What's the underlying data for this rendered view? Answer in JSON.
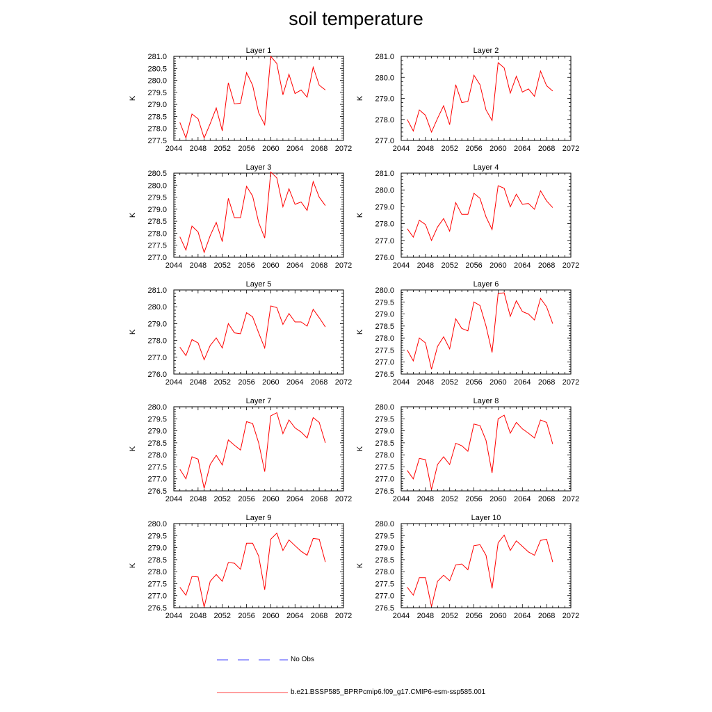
{
  "title": "soil temperature",
  "chart_data": [
    {
      "type": "line",
      "title": "Layer 1",
      "ylabel": "K",
      "xlim": [
        2044,
        2072
      ],
      "ylim": [
        277.5,
        281.0
      ],
      "xticks": [
        "2044",
        "2048",
        "2052",
        "2056",
        "2060",
        "2064",
        "2068",
        "2072"
      ],
      "yticks": [
        "277.5",
        "278.0",
        "278.5",
        "279.0",
        "279.5",
        "280.0",
        "280.5",
        "281.0"
      ],
      "x": [
        2045,
        2046,
        2047,
        2048,
        2049,
        2050,
        2051,
        2052,
        2053,
        2054,
        2055,
        2056,
        2057,
        2058,
        2059,
        2060,
        2061,
        2062,
        2063,
        2064,
        2065,
        2066,
        2067,
        2068,
        2069
      ],
      "series": [
        {
          "values": [
            278.25,
            277.6,
            278.6,
            278.4,
            277.6,
            278.2,
            278.85,
            277.9,
            279.9,
            279.02,
            279.05,
            280.32,
            279.8,
            278.65,
            278.15,
            281.0,
            280.7,
            279.4,
            280.25,
            279.45,
            279.6,
            279.3,
            280.55,
            279.8,
            279.6
          ],
          "color": "#ff0000"
        }
      ]
    },
    {
      "type": "line",
      "title": "Layer 2",
      "ylabel": "K",
      "xlim": [
        2044,
        2072
      ],
      "ylim": [
        277.0,
        281.0
      ],
      "xticks": [
        "2044",
        "2048",
        "2052",
        "2056",
        "2060",
        "2064",
        "2068",
        "2072"
      ],
      "yticks": [
        "277.0",
        "278.0",
        "279.0",
        "280.0",
        "281.0"
      ],
      "x": [
        2045,
        2046,
        2047,
        2048,
        2049,
        2050,
        2051,
        2052,
        2053,
        2054,
        2055,
        2056,
        2057,
        2058,
        2059,
        2060,
        2061,
        2062,
        2063,
        2064,
        2065,
        2066,
        2067,
        2068,
        2069
      ],
      "series": [
        {
          "values": [
            278.0,
            277.45,
            278.45,
            278.2,
            277.4,
            278.05,
            278.65,
            277.75,
            279.65,
            278.8,
            278.85,
            280.1,
            279.65,
            278.45,
            277.95,
            280.7,
            280.45,
            279.25,
            280.05,
            279.3,
            279.45,
            279.1,
            280.3,
            279.6,
            279.35
          ],
          "color": "#ff0000"
        }
      ]
    },
    {
      "type": "line",
      "title": "Layer 3",
      "ylabel": "K",
      "xlim": [
        2044,
        2072
      ],
      "ylim": [
        277.0,
        280.5
      ],
      "xticks": [
        "2044",
        "2048",
        "2052",
        "2056",
        "2060",
        "2064",
        "2068",
        "2072"
      ],
      "yticks": [
        "277.0",
        "277.5",
        "278.0",
        "278.5",
        "279.0",
        "279.5",
        "280.0",
        "280.5"
      ],
      "x": [
        2045,
        2046,
        2047,
        2048,
        2049,
        2050,
        2051,
        2052,
        2053,
        2054,
        2055,
        2056,
        2057,
        2058,
        2059,
        2060,
        2061,
        2062,
        2063,
        2064,
        2065,
        2066,
        2067,
        2068,
        2069
      ],
      "series": [
        {
          "values": [
            277.85,
            277.3,
            278.3,
            278.05,
            277.2,
            277.9,
            278.45,
            277.65,
            279.45,
            278.65,
            278.65,
            279.95,
            279.55,
            278.45,
            277.8,
            280.55,
            280.3,
            279.1,
            279.85,
            279.2,
            279.3,
            278.95,
            280.15,
            279.5,
            279.15
          ],
          "color": "#ff0000"
        }
      ]
    },
    {
      "type": "line",
      "title": "Layer 4",
      "ylabel": "K",
      "xlim": [
        2044,
        2072
      ],
      "ylim": [
        276.0,
        281.0
      ],
      "xticks": [
        "2044",
        "2048",
        "2052",
        "2056",
        "2060",
        "2064",
        "2068",
        "2072"
      ],
      "yticks": [
        "276.0",
        "277.0",
        "278.0",
        "279.0",
        "280.0",
        "281.0"
      ],
      "x": [
        2045,
        2046,
        2047,
        2048,
        2049,
        2050,
        2051,
        2052,
        2053,
        2054,
        2055,
        2056,
        2057,
        2058,
        2059,
        2060,
        2061,
        2062,
        2063,
        2064,
        2065,
        2066,
        2067,
        2068,
        2069
      ],
      "series": [
        {
          "values": [
            277.7,
            277.2,
            278.2,
            277.95,
            277.0,
            277.8,
            278.3,
            277.55,
            279.25,
            278.55,
            278.55,
            279.8,
            279.5,
            278.4,
            277.65,
            280.25,
            280.1,
            279.0,
            279.75,
            279.15,
            279.2,
            278.85,
            279.95,
            279.35,
            278.95
          ],
          "color": "#ff0000"
        }
      ]
    },
    {
      "type": "line",
      "title": "Layer 5",
      "ylabel": "K",
      "xlim": [
        2044,
        2072
      ],
      "ylim": [
        276.0,
        281.0
      ],
      "xticks": [
        "2044",
        "2048",
        "2052",
        "2056",
        "2060",
        "2064",
        "2068",
        "2072"
      ],
      "yticks": [
        "276.0",
        "277.0",
        "278.0",
        "279.0",
        "280.0",
        "281.0"
      ],
      "x": [
        2045,
        2046,
        2047,
        2048,
        2049,
        2050,
        2051,
        2052,
        2053,
        2054,
        2055,
        2056,
        2057,
        2058,
        2059,
        2060,
        2061,
        2062,
        2063,
        2064,
        2065,
        2066,
        2067,
        2068,
        2069
      ],
      "series": [
        {
          "values": [
            277.6,
            277.1,
            278.05,
            277.85,
            276.85,
            277.7,
            278.15,
            277.55,
            279.0,
            278.45,
            278.4,
            279.65,
            279.4,
            278.45,
            277.55,
            280.05,
            279.95,
            278.95,
            279.6,
            279.1,
            279.1,
            278.85,
            279.85,
            279.35,
            278.8
          ],
          "color": "#ff0000"
        }
      ]
    },
    {
      "type": "line",
      "title": "Layer 6",
      "ylabel": "K",
      "xlim": [
        2044,
        2072
      ],
      "ylim": [
        276.5,
        280.0
      ],
      "xticks": [
        "2044",
        "2048",
        "2052",
        "2056",
        "2060",
        "2064",
        "2068",
        "2072"
      ],
      "yticks": [
        "276.5",
        "277.0",
        "277.5",
        "278.0",
        "278.5",
        "279.0",
        "279.5",
        "280.0"
      ],
      "x": [
        2045,
        2046,
        2047,
        2048,
        2049,
        2050,
        2051,
        2052,
        2053,
        2054,
        2055,
        2056,
        2057,
        2058,
        2059,
        2060,
        2061,
        2062,
        2063,
        2064,
        2065,
        2066,
        2067,
        2068,
        2069
      ],
      "series": [
        {
          "values": [
            277.5,
            277.05,
            278.0,
            277.8,
            276.7,
            277.65,
            278.05,
            277.55,
            278.8,
            278.4,
            278.3,
            279.5,
            279.35,
            278.5,
            277.4,
            279.85,
            279.88,
            278.9,
            279.55,
            279.1,
            279.0,
            278.75,
            279.65,
            279.3,
            278.6
          ],
          "color": "#ff0000"
        }
      ]
    },
    {
      "type": "line",
      "title": "Layer 7",
      "ylabel": "K",
      "xlim": [
        2044,
        2072
      ],
      "ylim": [
        276.5,
        280.0
      ],
      "xticks": [
        "2044",
        "2048",
        "2052",
        "2056",
        "2060",
        "2064",
        "2068",
        "2072"
      ],
      "yticks": [
        "276.5",
        "277.0",
        "277.5",
        "278.0",
        "278.5",
        "279.0",
        "279.5",
        "280.0"
      ],
      "x": [
        2045,
        2046,
        2047,
        2048,
        2049,
        2050,
        2051,
        2052,
        2053,
        2054,
        2055,
        2056,
        2057,
        2058,
        2059,
        2060,
        2061,
        2062,
        2063,
        2064,
        2065,
        2066,
        2067,
        2068,
        2069
      ],
      "series": [
        {
          "values": [
            277.4,
            277.0,
            277.92,
            277.82,
            276.6,
            277.6,
            277.98,
            277.58,
            278.62,
            278.4,
            278.2,
            279.38,
            279.3,
            278.5,
            277.3,
            279.62,
            279.75,
            278.88,
            279.45,
            279.12,
            278.95,
            278.7,
            279.55,
            279.35,
            278.5
          ],
          "color": "#ff0000"
        }
      ]
    },
    {
      "type": "line",
      "title": "Layer 8",
      "ylabel": "K",
      "xlim": [
        2044,
        2072
      ],
      "ylim": [
        276.5,
        280.0
      ],
      "xticks": [
        "2044",
        "2048",
        "2052",
        "2056",
        "2060",
        "2064",
        "2068",
        "2072"
      ],
      "yticks": [
        "276.5",
        "277.0",
        "277.5",
        "278.0",
        "278.5",
        "279.0",
        "279.5",
        "280.0"
      ],
      "x": [
        2045,
        2046,
        2047,
        2048,
        2049,
        2050,
        2051,
        2052,
        2053,
        2054,
        2055,
        2056,
        2057,
        2058,
        2059,
        2060,
        2061,
        2062,
        2063,
        2064,
        2065,
        2066,
        2067,
        2068,
        2069
      ],
      "series": [
        {
          "values": [
            277.35,
            277.0,
            277.85,
            277.8,
            276.55,
            277.6,
            277.92,
            277.6,
            278.48,
            278.38,
            278.15,
            279.28,
            279.22,
            278.6,
            277.25,
            279.5,
            279.65,
            278.9,
            279.35,
            279.08,
            278.9,
            278.7,
            279.45,
            279.35,
            278.45
          ],
          "color": "#ff0000"
        }
      ]
    },
    {
      "type": "line",
      "title": "Layer 9",
      "ylabel": "K",
      "xlim": [
        2044,
        2072
      ],
      "ylim": [
        276.5,
        280.0
      ],
      "xticks": [
        "2044",
        "2048",
        "2052",
        "2056",
        "2060",
        "2064",
        "2068",
        "2072"
      ],
      "yticks": [
        "276.5",
        "277.0",
        "277.5",
        "278.0",
        "278.5",
        "279.0",
        "279.5",
        "280.0"
      ],
      "x": [
        2045,
        2046,
        2047,
        2048,
        2049,
        2050,
        2051,
        2052,
        2053,
        2054,
        2055,
        2056,
        2057,
        2058,
        2059,
        2060,
        2061,
        2062,
        2063,
        2064,
        2065,
        2066,
        2067,
        2068,
        2069
      ],
      "series": [
        {
          "values": [
            277.35,
            277.02,
            277.8,
            277.78,
            276.52,
            277.6,
            277.88,
            277.6,
            278.38,
            278.35,
            278.1,
            279.18,
            279.18,
            278.65,
            277.25,
            279.35,
            279.6,
            278.88,
            279.32,
            279.08,
            278.85,
            278.68,
            279.38,
            279.35,
            278.4
          ],
          "color": "#ff0000"
        }
      ]
    },
    {
      "type": "line",
      "title": "Layer 10",
      "ylabel": "K",
      "xlim": [
        2044,
        2072
      ],
      "ylim": [
        276.5,
        280.0
      ],
      "xticks": [
        "2044",
        "2048",
        "2052",
        "2056",
        "2060",
        "2064",
        "2068",
        "2072"
      ],
      "yticks": [
        "276.5",
        "277.0",
        "277.5",
        "278.0",
        "278.5",
        "279.0",
        "279.5",
        "280.0"
      ],
      "x": [
        2045,
        2046,
        2047,
        2048,
        2049,
        2050,
        2051,
        2052,
        2053,
        2054,
        2055,
        2056,
        2057,
        2058,
        2059,
        2060,
        2061,
        2062,
        2063,
        2064,
        2065,
        2066,
        2067,
        2068,
        2069
      ],
      "series": [
        {
          "values": [
            277.35,
            277.02,
            277.75,
            277.75,
            276.55,
            277.6,
            277.85,
            277.62,
            278.28,
            278.32,
            278.08,
            279.08,
            279.12,
            278.68,
            277.3,
            279.2,
            279.52,
            278.88,
            279.28,
            279.05,
            278.82,
            278.68,
            279.3,
            279.35,
            278.4
          ],
          "color": "#ff0000"
        }
      ]
    }
  ],
  "legend": {
    "obs_label": "No Obs",
    "obs_color": "#0000ff",
    "model_label": "b.e21.BSSP585_BPRPcmip6.f09_g17.CMIP6-esm-ssp585.001",
    "model_color": "#ff0000"
  }
}
